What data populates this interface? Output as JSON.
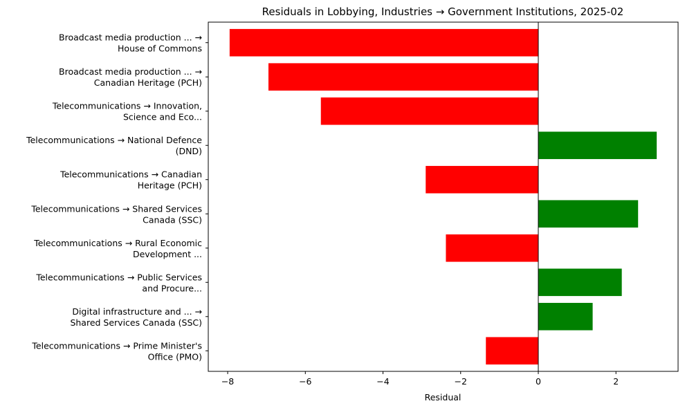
{
  "chart_data": {
    "type": "bar",
    "orientation": "horizontal",
    "title": "Residuals in Lobbying, Industries → Government Institutions, 2025-02",
    "xlabel": "Residual",
    "ylabel": "",
    "xlim": [
      -8.5,
      3.6
    ],
    "xticks": [
      -8,
      -6,
      -4,
      -2,
      0,
      2
    ],
    "xtick_labels": [
      "−8",
      "−6",
      "−4",
      "−2",
      "0",
      "2"
    ],
    "grid": false,
    "legend": false,
    "positive_color": "#008000",
    "negative_color": "#ff0000",
    "categories": [
      [
        "Broadcast media production ... →",
        "House of Commons"
      ],
      [
        "Broadcast media production ... →",
        "Canadian Heritage (PCH)"
      ],
      [
        "Telecommunications → Innovation,",
        "Science and Eco..."
      ],
      [
        "Telecommunications → National Defence",
        "(DND)"
      ],
      [
        "Telecommunications → Canadian",
        "Heritage (PCH)"
      ],
      [
        "Telecommunications → Shared Services",
        "Canada (SSC)"
      ],
      [
        "Telecommunications → Rural Economic",
        "Development ..."
      ],
      [
        "Telecommunications → Public Services",
        "and Procure..."
      ],
      [
        "Digital infrastructure and ... →",
        "Shared Services Canada (SSC)"
      ],
      [
        "Telecommunications → Prime Minister's",
        "Office (PMO)"
      ]
    ],
    "values": [
      -7.95,
      -6.95,
      -5.6,
      3.05,
      -2.9,
      2.57,
      -2.38,
      2.15,
      1.4,
      -1.35
    ]
  }
}
